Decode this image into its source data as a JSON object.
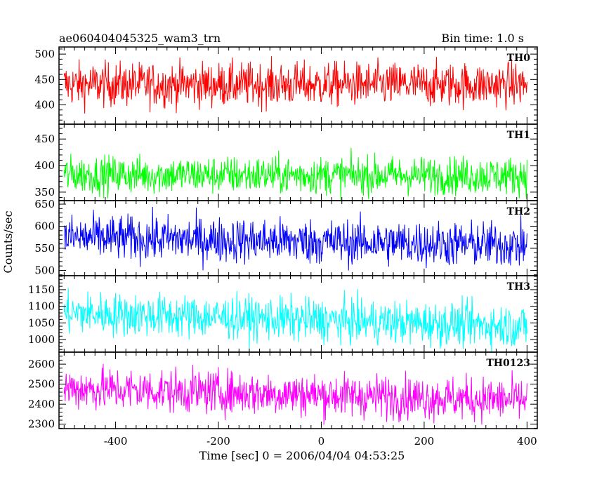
{
  "chart_data": {
    "type": "line",
    "title": "ae060404045325_wam3_trn",
    "subtitle": "Bin time: 1.0 s",
    "xlabel": "Time [sec] 0 = 2006/04/04 04:53:25",
    "ylabel": "Counts/sec",
    "xlim": [
      -510,
      420
    ],
    "xticks": [
      -400,
      -200,
      0,
      200,
      400
    ],
    "x_start": -500,
    "x_end": 400,
    "x_step": 1,
    "grid": false,
    "panels": [
      {
        "name": "TH0",
        "color": "#ff0000",
        "ylim": [
          362,
          514
        ],
        "yticks": [
          400,
          450,
          500
        ],
        "mean": 440,
        "spread": 22,
        "trend": 0
      },
      {
        "name": "TH1",
        "color": "#00ff00",
        "ylim": [
          334,
          478
        ],
        "yticks": [
          350,
          400,
          450
        ],
        "mean": 383,
        "spread": 18,
        "trend": -2
      },
      {
        "name": "TH2",
        "color": "#0000ff",
        "ylim": [
          488,
          658
        ],
        "yticks": [
          500,
          550,
          600,
          650
        ],
        "mean": 575,
        "spread": 26,
        "trend": -18
      },
      {
        "name": "TH3",
        "color": "#00ffff",
        "ylim": [
          962,
          1192
        ],
        "yticks": [
          1000,
          1050,
          1100,
          1150
        ],
        "mean": 1080,
        "spread": 33,
        "trend": -40
      },
      {
        "name": "TH0123",
        "color": "#ff00ff",
        "ylim": [
          2278,
          2660
        ],
        "yticks": [
          2300,
          2400,
          2500,
          2600
        ],
        "mean": 2480,
        "spread": 55,
        "trend": -60
      }
    ]
  }
}
